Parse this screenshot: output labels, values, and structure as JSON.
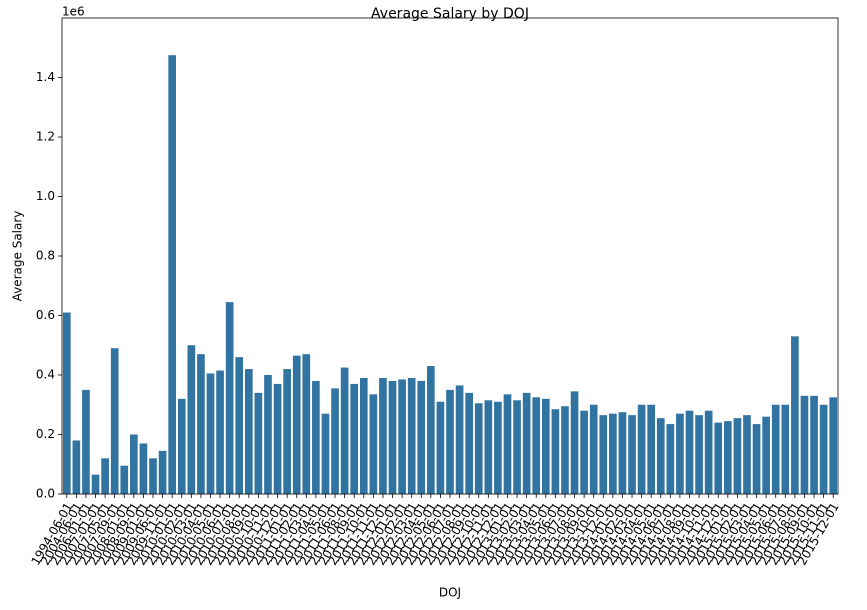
{
  "chart_data": {
    "type": "bar",
    "title": "Average Salary by DOJ",
    "x_label": "DOJ",
    "y_label": "Average Salary",
    "y_offset_label": "1e6",
    "color": "#3274a1",
    "categories": [
      "1994-06-01",
      "2004-06-01",
      "2006-01-01",
      "2007-01-01",
      "2007-05-01",
      "2007-09-01",
      "2008-01-01",
      "2008-09-01",
      "2009-01-01",
      "2009-06-01",
      "2009-11-01",
      "2010-01-01",
      "2010-02-01",
      "2010-03-01",
      "2010-04-01",
      "2010-05-01",
      "2010-06-01",
      "2010-07-01",
      "2010-08-01",
      "2010-09-01",
      "2010-10-01",
      "2010-11-01",
      "2010-12-01",
      "2011-01-01",
      "2011-02-01",
      "2011-03-01",
      "2011-04-01",
      "2011-05-01",
      "2011-06-01",
      "2011-08-01",
      "2011-09-01",
      "2011-10-01",
      "2011-11-01",
      "2011-12-01",
      "2012-01-01",
      "2012-02-01",
      "2012-03-01",
      "2012-04-01",
      "2012-05-01",
      "2012-06-01",
      "2012-07-01",
      "2012-08-01",
      "2012-09-01",
      "2012-10-01",
      "2012-11-01",
      "2012-12-01",
      "2013-01-01",
      "2013-02-01",
      "2013-03-01",
      "2013-04-01",
      "2013-05-01",
      "2013-06-01",
      "2013-07-01",
      "2013-08-01",
      "2013-09-01",
      "2013-10-01",
      "2013-12-01",
      "2014-01-01",
      "2014-02-01",
      "2014-03-01",
      "2014-04-01",
      "2014-05-01",
      "2014-06-01",
      "2014-07-01",
      "2014-08-01",
      "2014-09-01",
      "2014-10-01",
      "2014-11-01",
      "2014-12-01",
      "2015-01-01",
      "2015-02-01",
      "2015-03-01",
      "2015-04-01",
      "2015-05-01",
      "2015-06-01",
      "2015-07-01",
      "2015-08-01",
      "2015-09-01",
      "2015-10-01",
      "2015-11-01",
      "2015-12-01"
    ],
    "values": [
      0.61,
      0.18,
      0.35,
      0.065,
      0.12,
      0.49,
      0.095,
      0.2,
      0.17,
      0.12,
      0.145,
      1.475,
      0.32,
      0.5,
      0.47,
      0.405,
      0.415,
      0.645,
      0.46,
      0.42,
      0.34,
      0.4,
      0.37,
      0.42,
      0.465,
      0.47,
      0.38,
      0.27,
      0.355,
      0.425,
      0.37,
      0.39,
      0.335,
      0.39,
      0.38,
      0.385,
      0.39,
      0.38,
      0.43,
      0.31,
      0.35,
      0.365,
      0.34,
      0.305,
      0.315,
      0.31,
      0.335,
      0.315,
      0.34,
      0.325,
      0.32,
      0.285,
      0.295,
      0.345,
      0.28,
      0.3,
      0.265,
      0.27,
      0.275,
      0.265,
      0.3,
      0.3,
      0.255,
      0.235,
      0.27,
      0.28,
      0.265,
      0.28,
      0.24,
      0.245,
      0.255,
      0.265,
      0.235,
      0.26,
      0.3,
      0.3,
      0.53,
      0.33,
      0.33,
      0.3,
      0.325
    ],
    "ylim": [
      0,
      1.6
    ],
    "yticks": [
      {
        "value": 0,
        "label": "0.0"
      },
      0.2,
      0.4,
      0.6,
      0.8,
      {
        "value": 1,
        "label": "1.0"
      },
      1.2,
      1.4
    ]
  }
}
